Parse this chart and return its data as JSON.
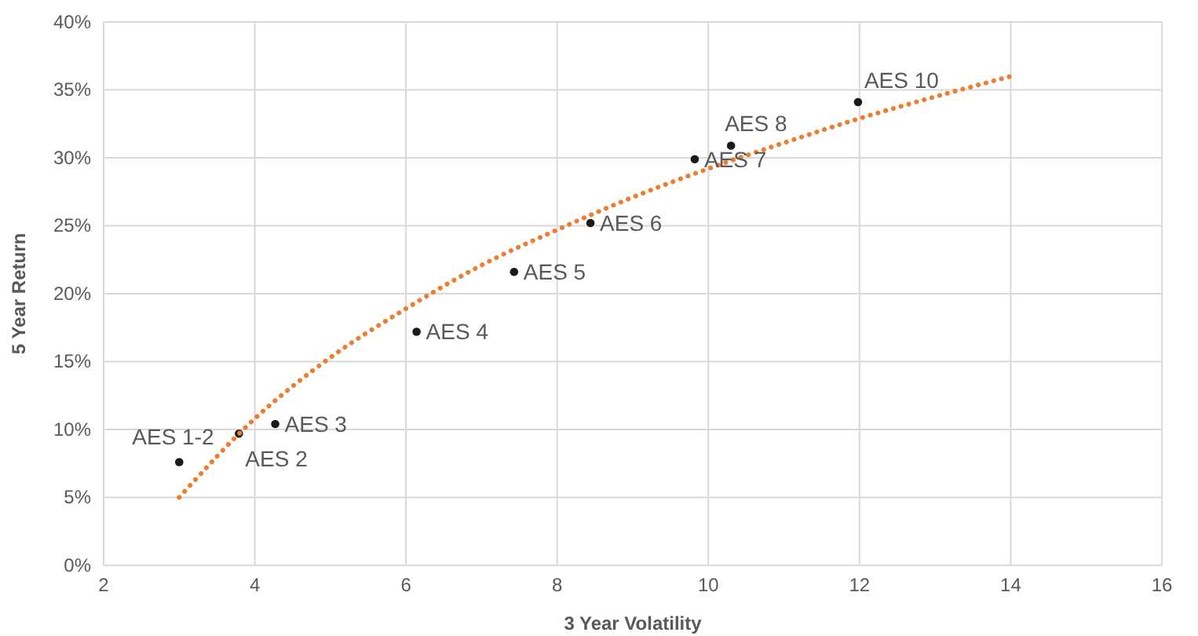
{
  "chart_data": {
    "type": "scatter",
    "xlabel": "3 Year Volatility",
    "ylabel": "5 Year Return",
    "xlim": [
      2,
      16
    ],
    "xticks": [
      2,
      4,
      6,
      8,
      10,
      12,
      14,
      16
    ],
    "ylim": [
      0,
      40
    ],
    "yticks": [
      {
        "value": 0,
        "label": "0%"
      },
      {
        "value": 5,
        "label": "5%"
      },
      {
        "value": 10,
        "label": "10%"
      },
      {
        "value": 15,
        "label": "15%"
      },
      {
        "value": 20,
        "label": "20%"
      },
      {
        "value": 25,
        "label": "25%"
      },
      {
        "value": 30,
        "label": "30%"
      },
      {
        "value": 35,
        "label": "35%"
      },
      {
        "value": 40,
        "label": "40%"
      }
    ],
    "grid": true,
    "series": [
      {
        "color": "#1a1a1a",
        "marker": "circle",
        "x": [
          3.0,
          3.79,
          4.27,
          6.14,
          7.43,
          8.44,
          9.82,
          10.3,
          11.98
        ],
        "values": [
          7.6,
          9.7,
          10.4,
          17.2,
          21.6,
          25.2,
          29.9,
          30.9,
          34.1
        ]
      },
      {
        "type": "line",
        "color": "#ed7d31",
        "line_style": "dotted",
        "marker": "none",
        "x": [
          3,
          4,
          5,
          6,
          7,
          8,
          9,
          10,
          11,
          12,
          13,
          14
        ],
        "values": [
          5.0,
          10.8,
          15.3,
          18.9,
          22.1,
          24.7,
          27.1,
          29.2,
          31.1,
          32.9,
          34.5,
          36.0
        ]
      }
    ],
    "annotations": [
      {
        "text": "AES 1-2",
        "x": 3.0,
        "y": 7.6
      },
      {
        "text": "AES 2",
        "x": 3.79,
        "y": 9.7
      },
      {
        "text": "AES 3",
        "x": 4.27,
        "y": 10.4
      },
      {
        "text": "AES 4",
        "x": 6.14,
        "y": 17.2
      },
      {
        "text": "AES 5",
        "x": 7.43,
        "y": 21.6
      },
      {
        "text": "AES 6",
        "x": 8.44,
        "y": 25.2
      },
      {
        "text": "AES 7",
        "x": 9.82,
        "y": 29.9
      },
      {
        "text": "AES 8",
        "x": 10.3,
        "y": 30.9
      },
      {
        "text": "AES 10",
        "x": 11.98,
        "y": 34.1
      }
    ]
  }
}
